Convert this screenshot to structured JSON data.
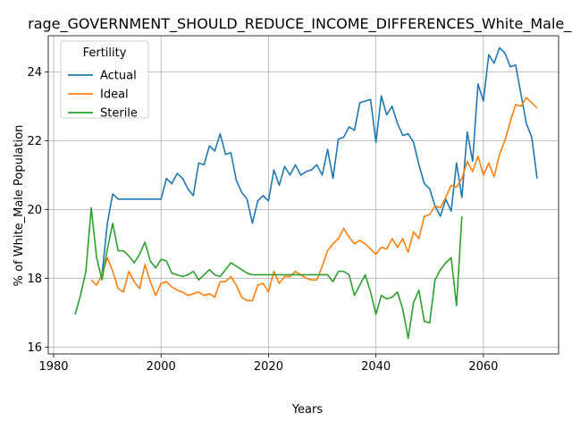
{
  "chart_data": {
    "type": "line",
    "title": "rage_GOVERNMENT_SHOULD_REDUCE_INCOME_DIFFERENCES_White_Male_P",
    "xlabel": "Years",
    "ylabel": "% of White_Male Population",
    "xlim": [
      1979,
      2074
    ],
    "ylim": [
      15.8,
      25.05
    ],
    "x_ticks": [
      1980,
      2000,
      2020,
      2040,
      2060
    ],
    "x_tick_labels": [
      "1980",
      "2000",
      "2020",
      "2040",
      "2060"
    ],
    "y_ticks": [
      16,
      18,
      20,
      22,
      24
    ],
    "y_tick_labels": [
      "16",
      "18",
      "20",
      "22",
      "24"
    ],
    "grid": true,
    "legend": {
      "title": "Fertility",
      "placement": "top-left"
    },
    "series": [
      {
        "name": "Actual",
        "color": "#1f77b4",
        "x": [
          1989,
          1990,
          1991,
          1992,
          1993,
          1994,
          1995,
          1996,
          1997,
          1998,
          1999,
          2000,
          2001,
          2002,
          2003,
          2004,
          2005,
          2006,
          2007,
          2008,
          2009,
          2010,
          2011,
          2012,
          2013,
          2014,
          2015,
          2016,
          2017,
          2018,
          2019,
          2020,
          2021,
          2022,
          2023,
          2024,
          2025,
          2026,
          2027,
          2028,
          2029,
          2030,
          2031,
          2032,
          2033,
          2034,
          2035,
          2036,
          2037,
          2038,
          2039,
          2040,
          2041,
          2042,
          2043,
          2044,
          2045,
          2046,
          2047,
          2048,
          2049,
          2050,
          2051,
          2052,
          2053,
          2054,
          2055,
          2056,
          2057,
          2058,
          2059,
          2060,
          2061,
          2062,
          2063,
          2064,
          2065,
          2066,
          2067,
          2068,
          2069,
          2070
        ],
        "values": [
          18.1,
          19.6,
          20.45,
          20.3,
          20.3,
          20.3,
          20.3,
          20.3,
          20.3,
          20.3,
          20.3,
          20.3,
          20.9,
          20.75,
          21.05,
          20.9,
          20.6,
          20.4,
          21.35,
          21.3,
          21.85,
          21.7,
          22.2,
          21.6,
          21.65,
          20.85,
          20.5,
          20.3,
          19.6,
          20.25,
          20.4,
          20.25,
          21.15,
          20.7,
          21.25,
          21.0,
          21.3,
          21.0,
          21.1,
          21.15,
          21.3,
          21.0,
          21.75,
          20.9,
          22.05,
          22.1,
          22.4,
          22.3,
          23.1,
          23.15,
          23.2,
          21.95,
          23.3,
          22.75,
          23.0,
          22.5,
          22.15,
          22.2,
          21.95,
          21.3,
          20.75,
          20.6,
          20.1,
          19.8,
          20.3,
          19.95,
          21.35,
          20.35,
          22.25,
          21.4,
          23.65,
          23.15,
          24.5,
          24.25,
          24.7,
          24.55,
          24.15,
          24.2,
          23.35,
          22.5,
          22.1,
          20.9
        ]
      },
      {
        "name": "Ideal",
        "color": "#ff7f0e",
        "x": [
          1987,
          1988,
          1989,
          1990,
          1991,
          1992,
          1993,
          1994,
          1995,
          1996,
          1997,
          1998,
          1999,
          2000,
          2001,
          2002,
          2003,
          2004,
          2005,
          2006,
          2007,
          2008,
          2009,
          2010,
          2011,
          2012,
          2013,
          2014,
          2015,
          2016,
          2017,
          2018,
          2019,
          2020,
          2021,
          2022,
          2023,
          2024,
          2025,
          2026,
          2027,
          2028,
          2029,
          2030,
          2031,
          2032,
          2033,
          2034,
          2035,
          2036,
          2037,
          2038,
          2039,
          2040,
          2041,
          2042,
          2043,
          2044,
          2045,
          2046,
          2047,
          2048,
          2049,
          2050,
          2051,
          2052,
          2053,
          2054,
          2055,
          2056,
          2057,
          2058,
          2059,
          2060,
          2061,
          2062,
          2063,
          2064,
          2065,
          2066,
          2067,
          2068,
          2069,
          2070
        ],
        "values": [
          17.95,
          17.8,
          18.1,
          18.6,
          18.2,
          17.7,
          17.6,
          18.2,
          17.9,
          17.7,
          18.4,
          17.9,
          17.5,
          17.85,
          17.9,
          17.75,
          17.65,
          17.6,
          17.5,
          17.55,
          17.6,
          17.5,
          17.55,
          17.45,
          17.9,
          17.9,
          18.05,
          17.8,
          17.45,
          17.35,
          17.35,
          17.8,
          17.85,
          17.6,
          18.2,
          17.85,
          18.05,
          18.05,
          18.2,
          18.1,
          18.0,
          17.95,
          17.95,
          18.35,
          18.8,
          19.0,
          19.15,
          19.45,
          19.2,
          19.0,
          19.1,
          19.0,
          18.85,
          18.7,
          18.9,
          18.85,
          19.15,
          18.9,
          19.15,
          18.75,
          19.35,
          19.15,
          19.8,
          19.85,
          20.1,
          20.05,
          20.35,
          20.7,
          20.65,
          20.9,
          21.4,
          21.1,
          21.55,
          21.0,
          21.35,
          20.95,
          21.6,
          22.0,
          22.55,
          23.05,
          23.0,
          23.25,
          23.1,
          22.95
        ]
      },
      {
        "name": "Sterile",
        "color": "#2ca02c",
        "x": [
          1984,
          1985,
          1986,
          1987,
          1988,
          1989,
          1990,
          1991,
          1992,
          1993,
          1994,
          1995,
          1996,
          1997,
          1998,
          1999,
          2000,
          2001,
          2002,
          2003,
          2004,
          2005,
          2006,
          2007,
          2008,
          2009,
          2010,
          2011,
          2012,
          2013,
          2014,
          2015,
          2016,
          2017,
          2018,
          2019,
          2020,
          2021,
          2022,
          2023,
          2024,
          2025,
          2026,
          2027,
          2028,
          2029,
          2030,
          2031,
          2032,
          2033,
          2034,
          2035,
          2036,
          2037,
          2038,
          2039,
          2040,
          2041,
          2042,
          2043,
          2044,
          2045,
          2046,
          2047,
          2048,
          2049,
          2050,
          2051,
          2052,
          2053,
          2054,
          2055,
          2056
        ],
        "values": [
          16.95,
          17.5,
          18.2,
          20.05,
          18.6,
          17.95,
          18.85,
          19.6,
          18.8,
          18.8,
          18.65,
          18.45,
          18.7,
          19.05,
          18.5,
          18.3,
          18.55,
          18.5,
          18.15,
          18.1,
          18.05,
          18.1,
          18.2,
          17.95,
          18.1,
          18.25,
          18.1,
          18.05,
          18.25,
          18.45,
          18.35,
          18.25,
          18.15,
          18.1,
          18.1,
          18.1,
          18.1,
          18.1,
          18.1,
          18.1,
          18.1,
          18.1,
          18.1,
          18.1,
          18.1,
          18.1,
          18.1,
          18.1,
          17.9,
          18.2,
          18.2,
          18.1,
          17.5,
          17.8,
          18.1,
          17.6,
          16.95,
          17.5,
          17.4,
          17.45,
          17.6,
          17.1,
          16.25,
          17.3,
          17.65,
          16.75,
          16.7,
          17.95,
          18.25,
          18.45,
          18.6,
          17.2,
          19.8
        ]
      }
    ]
  }
}
